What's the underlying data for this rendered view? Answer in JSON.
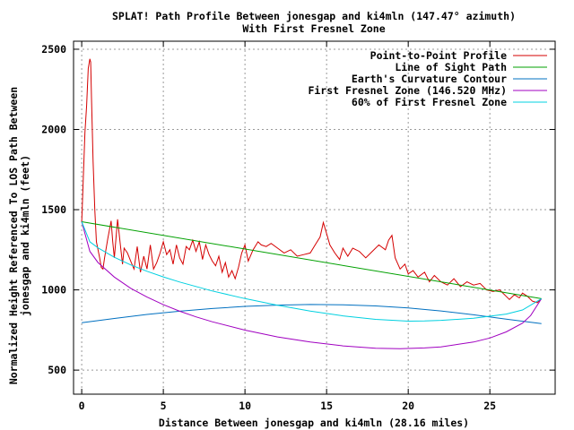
{
  "chart_data": {
    "type": "line",
    "title": "SPLAT! Path Profile Between jonesgap and ki4mln (147.47° azimuth)",
    "subtitle": "With First Fresnel Zone",
    "xlabel": "Distance Between jonesgap and ki4mln (28.16 miles)",
    "ylabel_line1": "Normalized Height Referenced To LOS Path Between",
    "ylabel_line2": "jonesgap and ki4mln (feet)",
    "xlim": [
      -0.5,
      29
    ],
    "ylim": [
      350,
      2550
    ],
    "xticks": [
      0,
      5,
      10,
      15,
      20,
      25
    ],
    "xtick_labels": [
      "0",
      "5",
      "10",
      "15",
      "20",
      "25"
    ],
    "yticks": [
      500,
      1000,
      1500,
      2000,
      2500
    ],
    "ytick_labels": [
      "500",
      "1000",
      "1500",
      "2000",
      "2500"
    ],
    "grid": true,
    "legend_position": "top-right",
    "series": [
      {
        "name": "Point-to-Point Profile",
        "color": "#d40000",
        "x": [
          0,
          0.1,
          0.2,
          0.3,
          0.4,
          0.5,
          0.55,
          0.6,
          0.7,
          0.8,
          0.9,
          1.0,
          1.1,
          1.2,
          1.3,
          1.4,
          1.6,
          1.8,
          1.9,
          2.0,
          2.1,
          2.2,
          2.4,
          2.5,
          2.6,
          2.8,
          3.0,
          3.2,
          3.4,
          3.6,
          3.8,
          4.0,
          4.2,
          4.4,
          4.6,
          4.8,
          5.0,
          5.2,
          5.4,
          5.6,
          5.8,
          6.0,
          6.2,
          6.4,
          6.6,
          6.8,
          7.0,
          7.2,
          7.4,
          7.6,
          7.8,
          8.0,
          8.2,
          8.4,
          8.6,
          8.8,
          9.0,
          9.2,
          9.4,
          9.6,
          9.8,
          10.0,
          10.2,
          10.5,
          10.8,
          11.0,
          11.3,
          11.6,
          12.0,
          12.4,
          12.8,
          13.2,
          13.6,
          14.0,
          14.3,
          14.6,
          14.8,
          15.0,
          15.2,
          15.5,
          15.8,
          16.0,
          16.3,
          16.6,
          17.0,
          17.4,
          17.8,
          18.2,
          18.6,
          18.8,
          19.0,
          19.2,
          19.5,
          19.8,
          20.0,
          20.3,
          20.6,
          21.0,
          21.3,
          21.6,
          22.0,
          22.4,
          22.8,
          23.2,
          23.6,
          24.0,
          24.4,
          24.8,
          25.2,
          25.6,
          26.0,
          26.2,
          26.5,
          26.8,
          27.0,
          27.3,
          27.6,
          27.9,
          28.16
        ],
        "y": [
          1420,
          1700,
          1980,
          2150,
          2380,
          2440,
          2420,
          2200,
          1800,
          1500,
          1300,
          1250,
          1200,
          1140,
          1130,
          1200,
          1320,
          1430,
          1300,
          1200,
          1320,
          1440,
          1250,
          1160,
          1260,
          1230,
          1180,
          1130,
          1270,
          1110,
          1210,
          1130,
          1280,
          1130,
          1170,
          1230,
          1300,
          1220,
          1250,
          1160,
          1280,
          1200,
          1160,
          1270,
          1250,
          1310,
          1240,
          1300,
          1190,
          1280,
          1220,
          1180,
          1150,
          1210,
          1110,
          1170,
          1080,
          1120,
          1070,
          1140,
          1230,
          1280,
          1180,
          1250,
          1300,
          1280,
          1270,
          1290,
          1260,
          1230,
          1250,
          1210,
          1220,
          1230,
          1280,
          1330,
          1420,
          1350,
          1280,
          1230,
          1190,
          1260,
          1210,
          1260,
          1240,
          1200,
          1240,
          1280,
          1250,
          1310,
          1340,
          1200,
          1130,
          1160,
          1100,
          1120,
          1080,
          1110,
          1050,
          1090,
          1050,
          1030,
          1070,
          1020,
          1050,
          1030,
          1040,
          1000,
          990,
          1000,
          960,
          940,
          970,
          950,
          980,
          960,
          930,
          920,
          945
        ]
      },
      {
        "name": "Line of Sight Path",
        "color": "#00a000",
        "x": [
          0,
          28.16
        ],
        "y": [
          1425,
          945
        ]
      },
      {
        "name": "Earth's Curvature Contour",
        "color": "#0070c0",
        "x": [
          0,
          2,
          4,
          6,
          8,
          10,
          12,
          14,
          16,
          18,
          20,
          22,
          24,
          26,
          28.16
        ],
        "y": [
          795,
          822,
          847,
          867,
          884,
          897,
          905,
          909,
          907,
          900,
          887,
          869,
          845,
          818,
          790
        ]
      },
      {
        "name": "First Fresnel Zone (146.520 MHz)",
        "color": "#a000c0",
        "x": [
          0,
          0.5,
          1,
          2,
          3,
          4,
          5,
          6,
          7,
          8,
          10,
          12,
          14,
          16,
          18,
          19.5,
          21,
          22,
          24,
          25,
          26,
          27,
          27.5,
          28.16
        ],
        "y": [
          1425,
          1240,
          1170,
          1080,
          1010,
          955,
          908,
          867,
          832,
          801,
          749,
          707,
          675,
          651,
          636,
          633,
          638,
          645,
          675,
          700,
          738,
          793,
          840,
          945
        ]
      },
      {
        "name": "60% of First Fresnel Zone",
        "color": "#00d0e0",
        "x": [
          0,
          0.5,
          1,
          2,
          3,
          4,
          5,
          6,
          8,
          10,
          12,
          14,
          16,
          18,
          20,
          21,
          22,
          24,
          26,
          27,
          28.16
        ],
        "y": [
          1425,
          1300,
          1262,
          1203,
          1156,
          1116,
          1081,
          1049,
          993,
          946,
          904,
          868,
          838,
          816,
          805,
          806,
          810,
          823,
          849,
          875,
          945
        ]
      }
    ]
  }
}
